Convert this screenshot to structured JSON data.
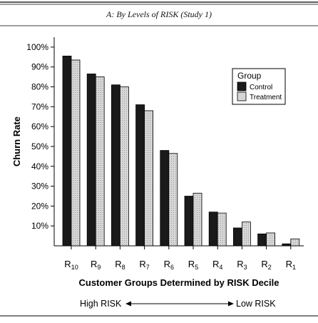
{
  "chart_data": {
    "type": "bar",
    "title": "A: By Levels of RISK (Study 1)",
    "xlabel": "Customer Groups Determined by RISK Decile",
    "ylabel": "Churn Rate",
    "ylim": [
      0,
      1.05
    ],
    "yticks": [
      "10%",
      "20%",
      "30%",
      "40%",
      "50%",
      "60%",
      "70%",
      "80%",
      "90%",
      "100%"
    ],
    "categories": [
      {
        "base": "R",
        "sub": "10"
      },
      {
        "base": "R",
        "sub": "9"
      },
      {
        "base": "R",
        "sub": "8"
      },
      {
        "base": "R",
        "sub": "7"
      },
      {
        "base": "R",
        "sub": "6"
      },
      {
        "base": "R",
        "sub": "5"
      },
      {
        "base": "R",
        "sub": "4"
      },
      {
        "base": "R",
        "sub": "3"
      },
      {
        "base": "R",
        "sub": "2"
      },
      {
        "base": "R",
        "sub": "1"
      }
    ],
    "legend": {
      "title": "Group",
      "position": "top-right"
    },
    "series": [
      {
        "name": "Control",
        "color": "#1a1a1a",
        "values": [
          0.955,
          0.865,
          0.81,
          0.71,
          0.48,
          0.25,
          0.17,
          0.09,
          0.06,
          0.01
        ]
      },
      {
        "name": "Treatment",
        "color": "#d0d0d0",
        "values": [
          0.935,
          0.85,
          0.8,
          0.68,
          0.465,
          0.265,
          0.165,
          0.12,
          0.065,
          0.035
        ]
      }
    ],
    "grid": false,
    "risk_scale": {
      "high_label": "High RISK",
      "low_label": "Low RISK"
    }
  }
}
